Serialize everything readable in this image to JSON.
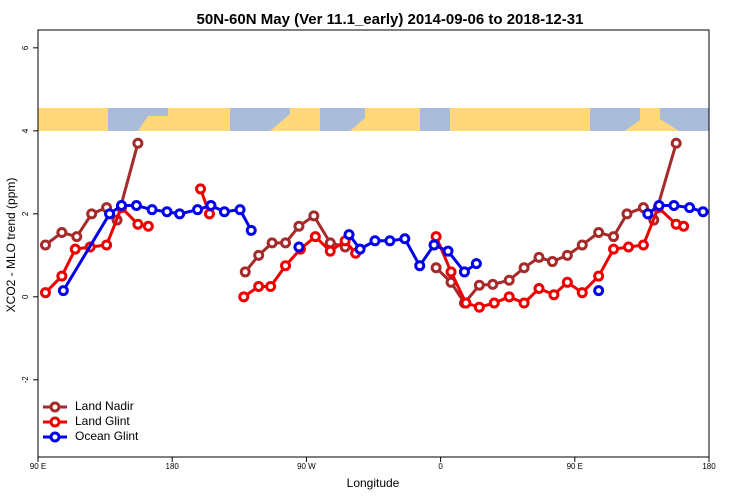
{
  "chart_data": {
    "type": "line",
    "title": "50N-60N May (Ver 11.1_early)   2014-09-06 to 2018-12-31",
    "x_label": "Longitude",
    "y_label": "XCO2 - MLO trend (ppm)",
    "xlim": [
      90,
      540
    ],
    "ylim": [
      -3.86,
      6.43
    ],
    "xticks": [
      {
        "value": 90,
        "label": "90 E"
      },
      180,
      {
        "value": 270,
        "label": "90 W"
      },
      {
        "value": 360,
        "label": "0"
      },
      {
        "value": 450,
        "label": "90 E"
      },
      {
        "value": 540,
        "label": "180"
      }
    ],
    "yticks": [
      -2,
      0,
      2,
      4,
      6
    ],
    "legend": "bottom-left",
    "series": [
      {
        "name": "Land Nadir",
        "color": "#a52a2a",
        "x": [
          95,
          106,
          116,
          126,
          136,
          143,
          157,
          null,
          229,
          238,
          247,
          256,
          265,
          275,
          286,
          296,
          null,
          357,
          367,
          376,
          386,
          395,
          406,
          416,
          426,
          435,
          445,
          455,
          466,
          476,
          485,
          496,
          503,
          518
        ],
        "values": [
          1.25,
          1.55,
          1.45,
          2.0,
          2.15,
          1.85,
          3.7,
          null,
          0.6,
          1.0,
          1.3,
          1.3,
          1.7,
          1.95,
          1.3,
          1.2,
          null,
          0.7,
          0.35,
          -0.15,
          0.28,
          0.3,
          0.4,
          0.7,
          0.95,
          0.85,
          1.0,
          1.25,
          1.55,
          1.45,
          2.0,
          2.15,
          1.85,
          3.7
        ]
      },
      {
        "name": "Land Glint",
        "color": "#ee0000",
        "x": [
          95,
          106,
          115,
          125,
          136,
          146,
          157,
          164,
          null,
          199,
          205,
          null,
          228,
          238,
          246,
          256,
          266,
          276,
          286,
          296,
          303,
          null,
          357,
          367,
          377,
          386,
          396,
          406,
          416,
          426,
          436,
          445,
          455,
          466,
          476,
          486,
          496,
          506,
          518,
          523
        ],
        "values": [
          0.1,
          0.5,
          1.15,
          1.2,
          1.25,
          2.15,
          1.75,
          1.7,
          null,
          2.6,
          2.0,
          null,
          0.0,
          0.25,
          0.25,
          0.75,
          1.15,
          1.45,
          1.1,
          1.35,
          1.05,
          null,
          1.45,
          0.6,
          -0.15,
          -0.25,
          -0.15,
          0.0,
          -0.15,
          0.2,
          0.05,
          0.35,
          0.1,
          0.5,
          1.15,
          1.2,
          1.25,
          2.15,
          1.75,
          1.7
        ]
      },
      {
        "name": "Ocean Glint",
        "color": "#0000ee",
        "x": [
          107,
          138,
          146,
          156,
          166.5,
          176.5,
          185,
          197,
          206,
          215,
          225.5,
          233,
          null,
          265,
          null,
          298.6,
          306,
          316,
          326,
          336,
          346,
          355.6,
          365,
          376,
          384,
          null,
          466,
          null,
          499,
          506.5,
          516.5,
          527,
          536
        ],
        "values": [
          0.15,
          2.0,
          2.2,
          2.2,
          2.1,
          2.05,
          2.0,
          2.1,
          2.2,
          2.05,
          2.1,
          1.6,
          null,
          1.2,
          null,
          1.5,
          1.15,
          1.35,
          1.35,
          1.4,
          0.75,
          1.25,
          1.1,
          0.6,
          0.8,
          null,
          0.15,
          null,
          2.0,
          2.2,
          2.2,
          2.15,
          2.05
        ]
      }
    ]
  }
}
